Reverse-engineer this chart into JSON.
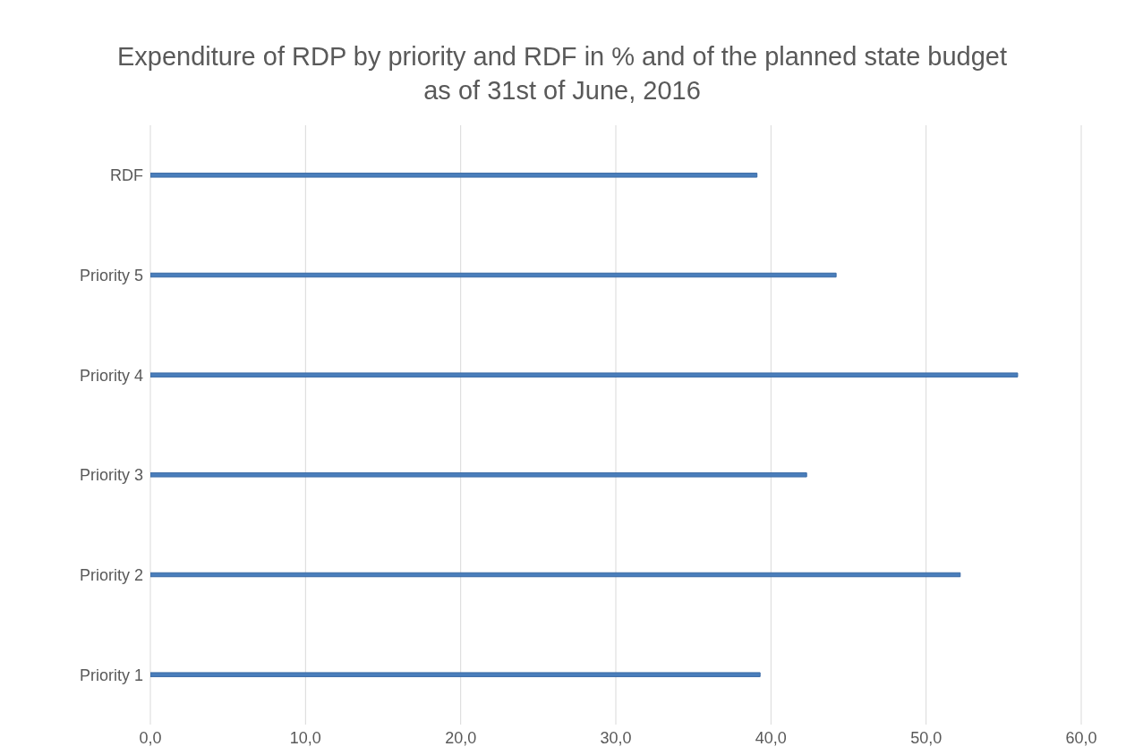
{
  "chart_data": {
    "type": "bar",
    "orientation": "horizontal",
    "title": "Expenditure of RDP by priority and RDF in % and of the planned state budget as of 31st of June, 2016",
    "categories": [
      "RDF",
      "Priority 5",
      "Priority 4",
      "Priority 3",
      "Priority 2",
      "Priority 1"
    ],
    "values": [
      39.1,
      44.2,
      55.9,
      42.3,
      52.2,
      39.3
    ],
    "color": "#4a7ebb",
    "xlim": [
      0,
      60
    ],
    "xticks": [
      {
        "value": 0,
        "label": "0,0"
      },
      {
        "value": 10,
        "label": "10,0"
      },
      {
        "value": 20,
        "label": "20,0"
      },
      {
        "value": 30,
        "label": "30,0"
      },
      {
        "value": 40,
        "label": "40,0"
      },
      {
        "value": 50,
        "label": "50,0"
      },
      {
        "value": 60,
        "label": "60,0"
      }
    ],
    "grid": "x",
    "legend": false
  }
}
